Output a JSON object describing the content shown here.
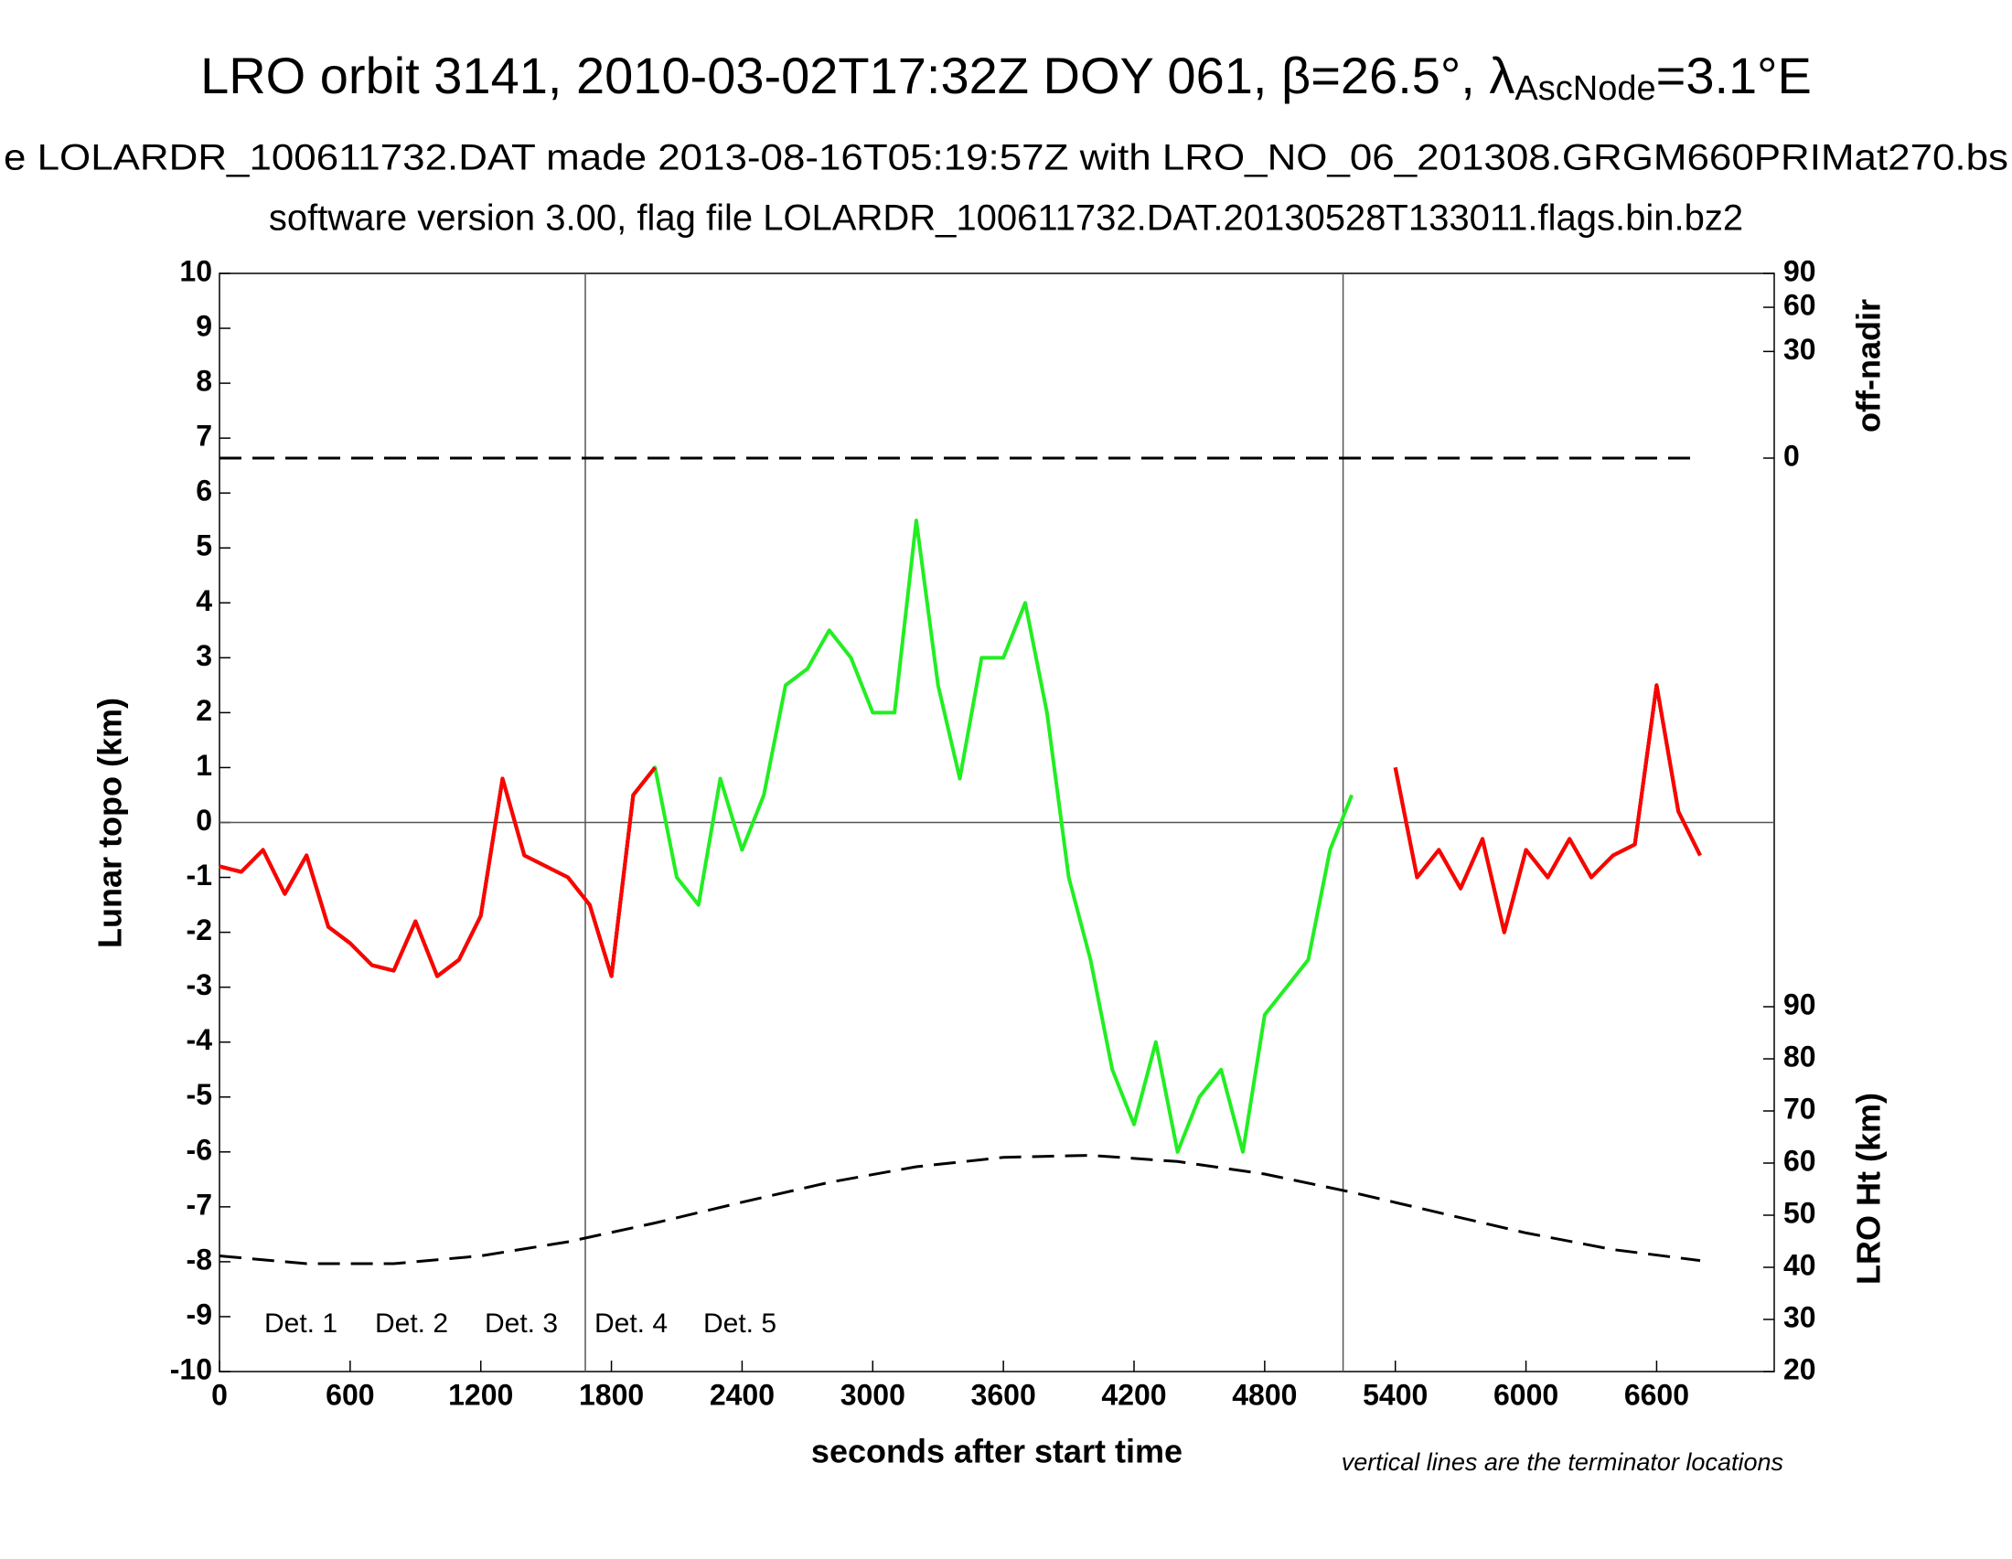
{
  "chart_data": {
    "type": "line",
    "title": "LRO orbit 3141, 2010-03-02T17:32Z DOY 061, β=26.5°, λ",
    "title_subscript": "AscNode",
    "title_end": "=3.1°E",
    "subtitle": [
      "e LOLARDR_100611732.DAT made 2013-08-16T05:19:57Z with LRO_NO_06_201308.GRGM660PRIMat270.bs",
      "software version 3.00, flag file LOLARDR_100611732.DAT.20130528T133011.flags.bin.bz2"
    ],
    "xlabel": "seconds after start time",
    "ylabel": "Lunar topo (km)",
    "note": "vertical lines are the terminator locations",
    "xlim": [
      0,
      7140
    ],
    "xticks": [
      0,
      600,
      1200,
      1800,
      2400,
      3000,
      3600,
      4200,
      4800,
      5400,
      6000,
      6600
    ],
    "ylim": [
      -10,
      10
    ],
    "yticks": [
      -10,
      -9,
      -8,
      -7,
      -6,
      -5,
      -4,
      -3,
      -2,
      -1,
      0,
      1,
      2,
      3,
      4,
      5,
      6,
      7,
      8,
      9,
      10
    ],
    "zero_line": 0,
    "terminators": [
      1680,
      5160
    ],
    "x": [
      0,
      100,
      200,
      300,
      400,
      500,
      600,
      700,
      800,
      900,
      1000,
      1100,
      1200,
      1300,
      1400,
      1500,
      1600,
      1700,
      1800,
      1900,
      2000,
      2100,
      2200,
      2300,
      2400,
      2500,
      2600,
      2700,
      2800,
      2900,
      3000,
      3100,
      3200,
      3300,
      3400,
      3500,
      3600,
      3700,
      3800,
      3900,
      4000,
      4100,
      4200,
      4300,
      4400,
      4500,
      4600,
      4700,
      4800,
      4900,
      5000,
      5100,
      5200,
      5300,
      5400,
      5500,
      5600,
      5700,
      5800,
      5900,
      6000,
      6100,
      6200,
      6300,
      6400,
      6500,
      6600,
      6700,
      6800
    ],
    "series": [
      {
        "name": "Det. 1",
        "color": "#000000",
        "values": [
          -0.8,
          -0.9,
          -0.5,
          -1.3,
          -0.6,
          -1.9,
          -2.2,
          -2.6,
          -2.7,
          -1.8,
          -2.8,
          -2.5,
          -1.7,
          0.8,
          -0.6,
          -0.8,
          -1.0,
          -1.5,
          -2.8,
          0.5,
          1.0,
          null,
          null,
          null,
          null,
          null,
          null,
          null,
          null,
          null,
          null,
          null,
          null,
          null,
          null,
          null,
          null,
          null,
          null,
          null,
          null,
          null,
          null,
          null,
          null,
          null,
          null,
          null,
          null,
          null,
          null,
          null,
          null,
          null,
          1.0,
          -1.0,
          -0.5,
          -1.2,
          -0.3,
          -2.0,
          -0.5,
          -1.0,
          -0.3,
          -1.0,
          -0.6,
          -0.4,
          2.5,
          0.2,
          -0.6
        ]
      },
      {
        "name": "Det. 2",
        "color": "#0000ff",
        "values": [
          -0.8,
          -0.9,
          -0.5,
          -1.3,
          -0.6,
          -1.9,
          -2.2,
          -2.6,
          -2.7,
          -1.8,
          -2.8,
          -2.5,
          -1.7,
          0.8,
          -0.6,
          -0.8,
          -1.0,
          -1.5,
          -2.8,
          0.5,
          1.0,
          null,
          null,
          null,
          null,
          null,
          null,
          null,
          null,
          null,
          null,
          null,
          null,
          null,
          null,
          null,
          null,
          null,
          null,
          null,
          null,
          null,
          null,
          null,
          null,
          null,
          null,
          null,
          null,
          null,
          null,
          null,
          null,
          null,
          1.0,
          -1.0,
          -0.5,
          -1.2,
          -0.3,
          -2.0,
          -0.5,
          -1.0,
          -0.3,
          -1.0,
          -0.6,
          -0.4,
          2.5,
          0.2,
          -0.6
        ]
      },
      {
        "name": "Det. 3",
        "color": "#22ee22",
        "values": [
          -0.8,
          -0.9,
          -0.5,
          -1.3,
          -0.6,
          -1.9,
          -2.2,
          -2.6,
          -2.7,
          -1.8,
          -2.8,
          -2.5,
          -1.7,
          0.8,
          -0.6,
          -0.8,
          -1.0,
          -1.5,
          -2.8,
          0.5,
          1.0,
          -1.0,
          -1.5,
          0.8,
          -0.5,
          0.5,
          2.5,
          2.8,
          3.5,
          3.0,
          2.0,
          2.0,
          5.5,
          2.5,
          0.8,
          3.0,
          3.0,
          4.0,
          2.0,
          -1.0,
          -2.5,
          -4.5,
          -5.5,
          -4.0,
          -6.0,
          -5.0,
          -4.5,
          -6.0,
          -3.5,
          -3.0,
          -2.5,
          -0.5,
          0.5,
          null,
          1.0,
          -1.0,
          -0.5,
          -1.2,
          -0.3,
          -2.0,
          -0.5,
          -1.0,
          -0.3,
          -1.0,
          -0.6,
          -0.4,
          2.5,
          0.2,
          -0.6
        ]
      },
      {
        "name": "Det. 4",
        "color": "#ffa500",
        "values": [
          -0.8,
          -0.9,
          -0.5,
          -1.3,
          -0.6,
          -1.9,
          -2.2,
          -2.6,
          -2.7,
          -1.8,
          -2.8,
          -2.5,
          -1.7,
          0.8,
          -0.6,
          -0.8,
          -1.0,
          -1.5,
          -2.8,
          0.5,
          1.0,
          null,
          null,
          null,
          null,
          null,
          null,
          null,
          null,
          null,
          null,
          null,
          null,
          null,
          null,
          null,
          null,
          null,
          null,
          null,
          null,
          null,
          null,
          null,
          null,
          null,
          null,
          null,
          null,
          null,
          null,
          null,
          null,
          null,
          1.0,
          -1.0,
          -0.5,
          -1.2,
          -0.3,
          -2.0,
          -0.5,
          -1.0,
          -0.3,
          -1.0,
          -0.6,
          -0.4,
          2.5,
          0.2,
          -0.6
        ]
      },
      {
        "name": "Det. 5",
        "color": "#ff0000",
        "values": [
          -0.8,
          -0.9,
          -0.5,
          -1.3,
          -0.6,
          -1.9,
          -2.2,
          -2.6,
          -2.7,
          -1.8,
          -2.8,
          -2.5,
          -1.7,
          0.8,
          -0.6,
          -0.8,
          -1.0,
          -1.5,
          -2.8,
          0.5,
          1.0,
          null,
          null,
          null,
          null,
          null,
          null,
          null,
          null,
          null,
          null,
          null,
          null,
          null,
          null,
          null,
          null,
          null,
          null,
          null,
          null,
          null,
          null,
          null,
          null,
          null,
          null,
          null,
          null,
          null,
          null,
          null,
          null,
          null,
          1.0,
          -1.0,
          -0.5,
          -1.2,
          -0.3,
          -2.0,
          -0.5,
          -1.0,
          -0.3,
          -1.0,
          -0.6,
          -0.4,
          2.5,
          0.2,
          -0.6
        ]
      }
    ],
    "off_nadir": {
      "label": "off-nadir",
      "scale": "sqrt",
      "lim": [
        0,
        90
      ],
      "ticks": [
        0,
        30,
        60,
        90
      ],
      "x": [
        0,
        6800
      ],
      "values": [
        0,
        0
      ]
    },
    "spacecraft_height": {
      "label": "LRO Ht (km)",
      "lim": [
        20,
        90
      ],
      "ticks": [
        20,
        30,
        40,
        50,
        60,
        70,
        80,
        90
      ],
      "x": [
        0,
        400,
        800,
        1200,
        1600,
        2000,
        2400,
        2800,
        3200,
        3600,
        4000,
        4400,
        4800,
        5200,
        5600,
        6000,
        6400,
        6800
      ],
      "values": [
        42.2,
        40.7,
        40.7,
        42.2,
        44.9,
        48.5,
        52.5,
        56.3,
        59.3,
        61.1,
        61.5,
        60.3,
        57.9,
        54.4,
        50.5,
        46.6,
        43.4,
        41.3
      ]
    }
  }
}
